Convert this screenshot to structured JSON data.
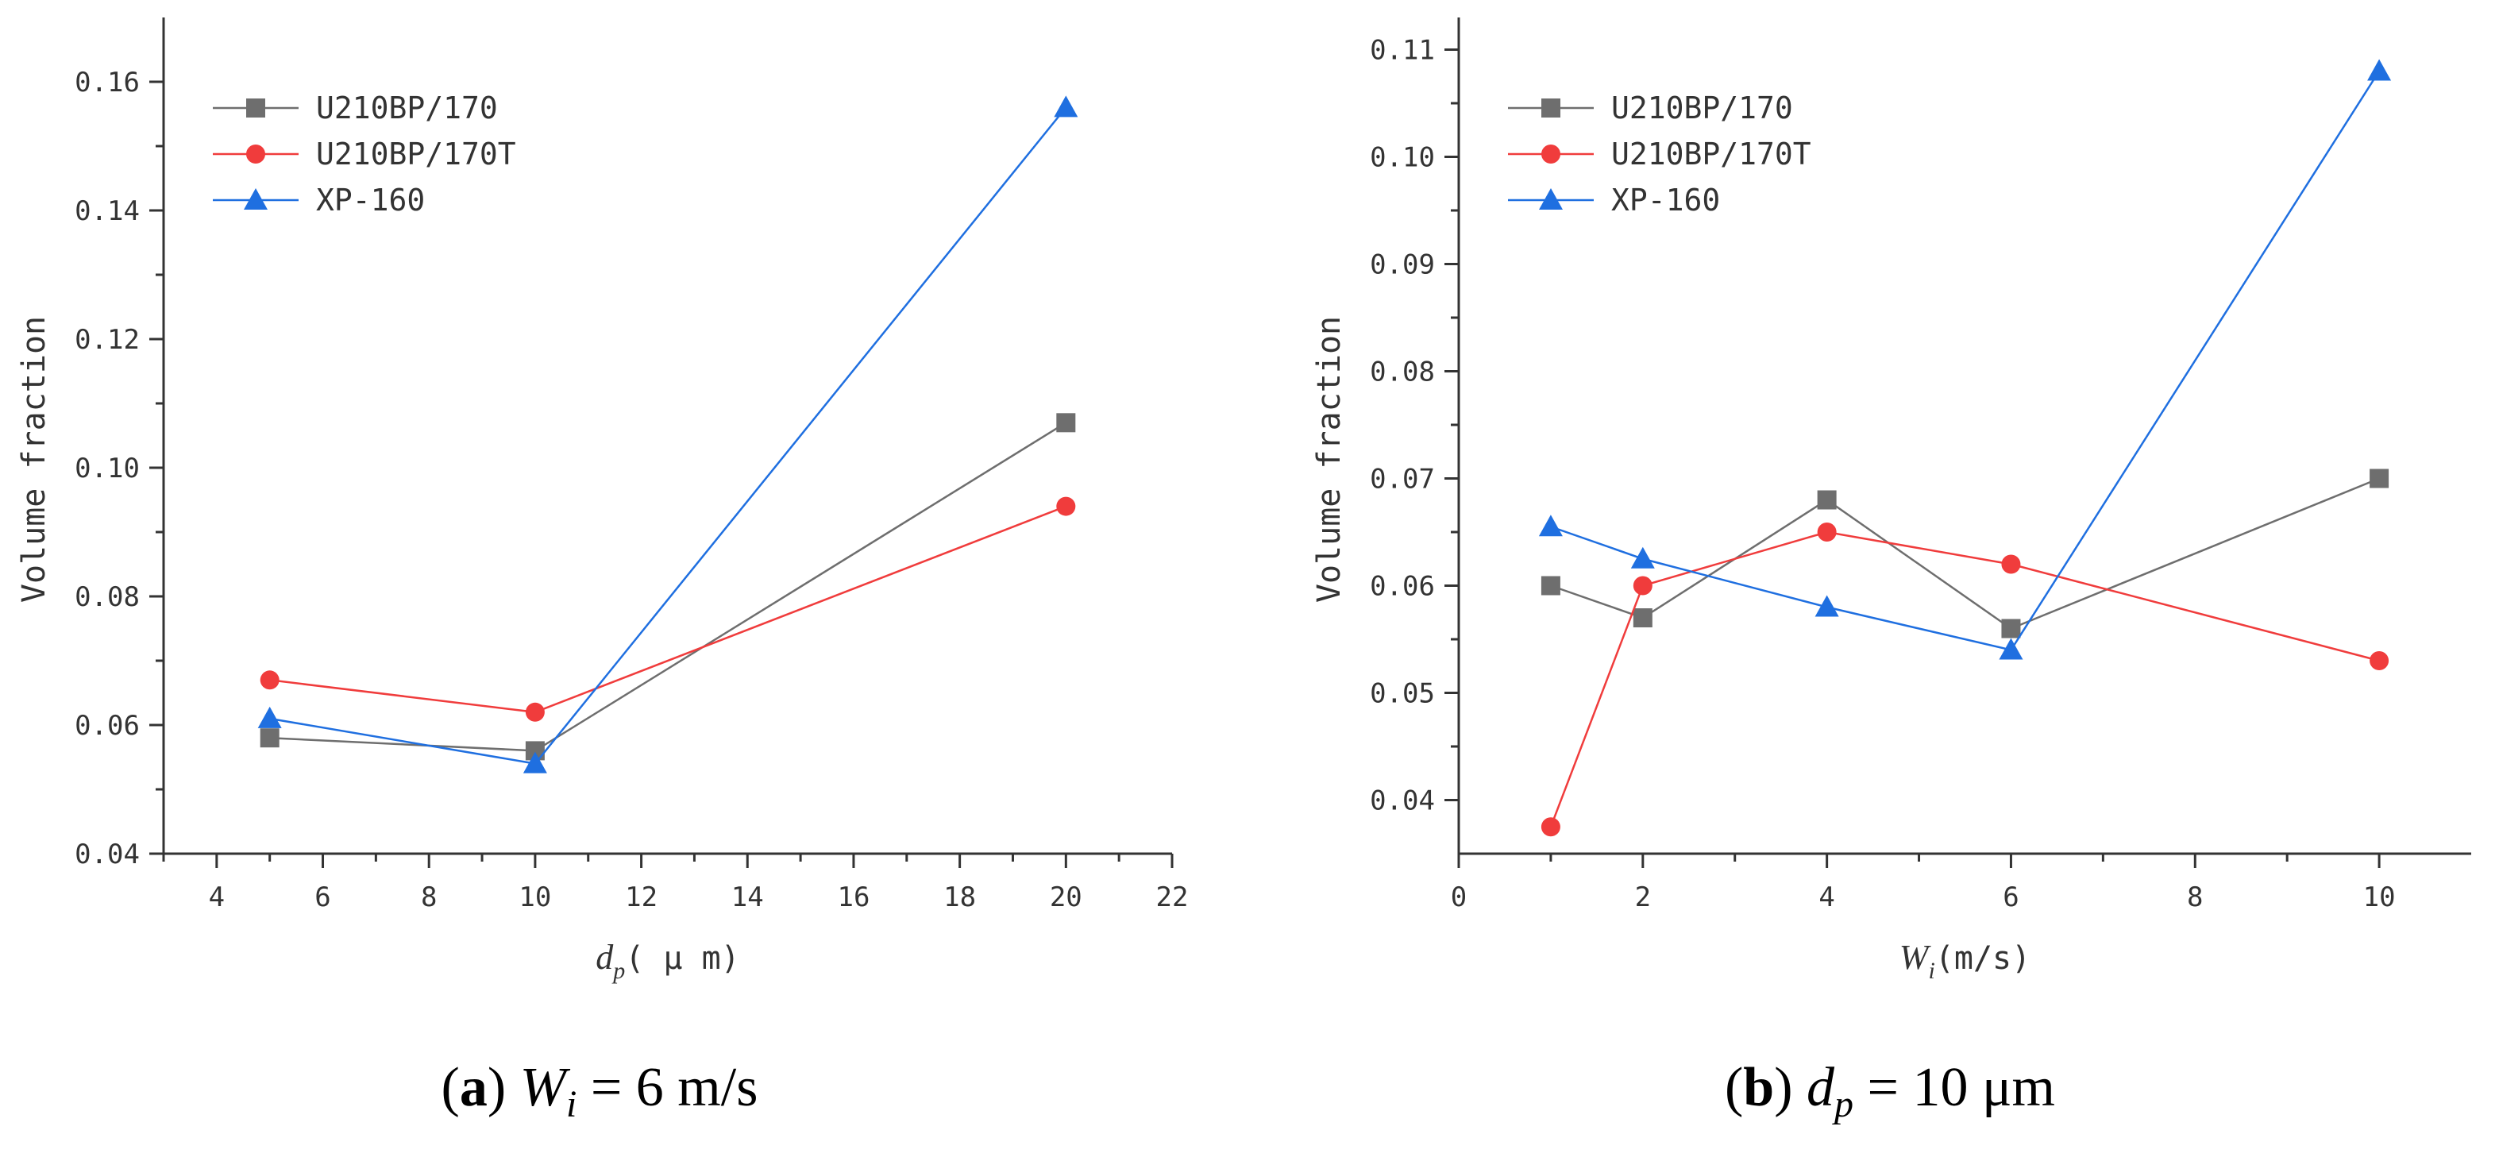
{
  "colors": {
    "U210BP/170": "#6e6e6e",
    "U210BP/170T": "#f03c3c",
    "XP-160": "#1f6fe0",
    "axis": "#333333"
  },
  "chart_data": [
    {
      "type": "line",
      "title": "",
      "caption": {
        "letter": "a",
        "var": "W",
        "sub": "i",
        "rest": " = 6 m/s"
      },
      "xlabel": {
        "var": "d",
        "sub": "p",
        "rest": "( μ m)"
      },
      "ylabel": "Volume fraction",
      "xlim": [
        3,
        22
      ],
      "ylim": [
        0.04,
        0.17
      ],
      "xticks": [
        4,
        6,
        8,
        10,
        12,
        14,
        16,
        18,
        20,
        22
      ],
      "xtick_labels": [
        "4",
        "6",
        "8",
        "10",
        "12",
        "14",
        "16",
        "18",
        "20",
        "22"
      ],
      "yticks": [
        0.04,
        0.06,
        0.08,
        0.1,
        0.12,
        0.14,
        0.16
      ],
      "ytick_labels": [
        "0.04",
        "0.06",
        "0.08",
        "0.10",
        "0.12",
        "0.14",
        "0.16"
      ],
      "legend_position": "top-left",
      "series": [
        {
          "name": "U210BP/170",
          "marker": "square",
          "x": [
            5,
            10,
            20
          ],
          "y": [
            0.058,
            0.056,
            0.107
          ]
        },
        {
          "name": "U210BP/170T",
          "marker": "circle",
          "x": [
            5,
            10,
            20
          ],
          "y": [
            0.067,
            0.062,
            0.094
          ]
        },
        {
          "name": "XP-160",
          "marker": "triangle",
          "x": [
            5,
            10,
            20
          ],
          "y": [
            0.061,
            0.054,
            0.156
          ]
        }
      ]
    },
    {
      "type": "line",
      "title": "",
      "caption": {
        "letter": "b",
        "var": "d",
        "sub": "p",
        "rest": " = 10 μm"
      },
      "xlabel": {
        "var": "W",
        "sub": "i",
        "rest": "(m/s)"
      },
      "ylabel": "Volume fraction",
      "xlim": [
        0,
        11
      ],
      "ylim": [
        0.035,
        0.113
      ],
      "xticks": [
        0,
        2,
        4,
        6,
        8,
        10
      ],
      "xtick_labels": [
        "0",
        "2",
        "4",
        "6",
        "8",
        "10"
      ],
      "yticks": [
        0.04,
        0.05,
        0.06,
        0.07,
        0.08,
        0.09,
        0.1,
        0.11
      ],
      "ytick_labels": [
        "0.04",
        "0.05",
        "0.06",
        "0.07",
        "0.08",
        "0.09",
        "0.10",
        "0.11"
      ],
      "legend_position": "top-left",
      "series": [
        {
          "name": "U210BP/170",
          "marker": "square",
          "x": [
            1,
            2,
            4,
            6,
            10
          ],
          "y": [
            0.06,
            0.057,
            0.068,
            0.056,
            0.07
          ]
        },
        {
          "name": "U210BP/170T",
          "marker": "circle",
          "x": [
            1,
            2,
            4,
            6,
            10
          ],
          "y": [
            0.0375,
            0.06,
            0.065,
            0.062,
            0.053
          ]
        },
        {
          "name": "XP-160",
          "marker": "triangle",
          "x": [
            1,
            2,
            4,
            6,
            10
          ],
          "y": [
            0.0655,
            0.0625,
            0.058,
            0.054,
            0.108
          ]
        }
      ]
    }
  ]
}
